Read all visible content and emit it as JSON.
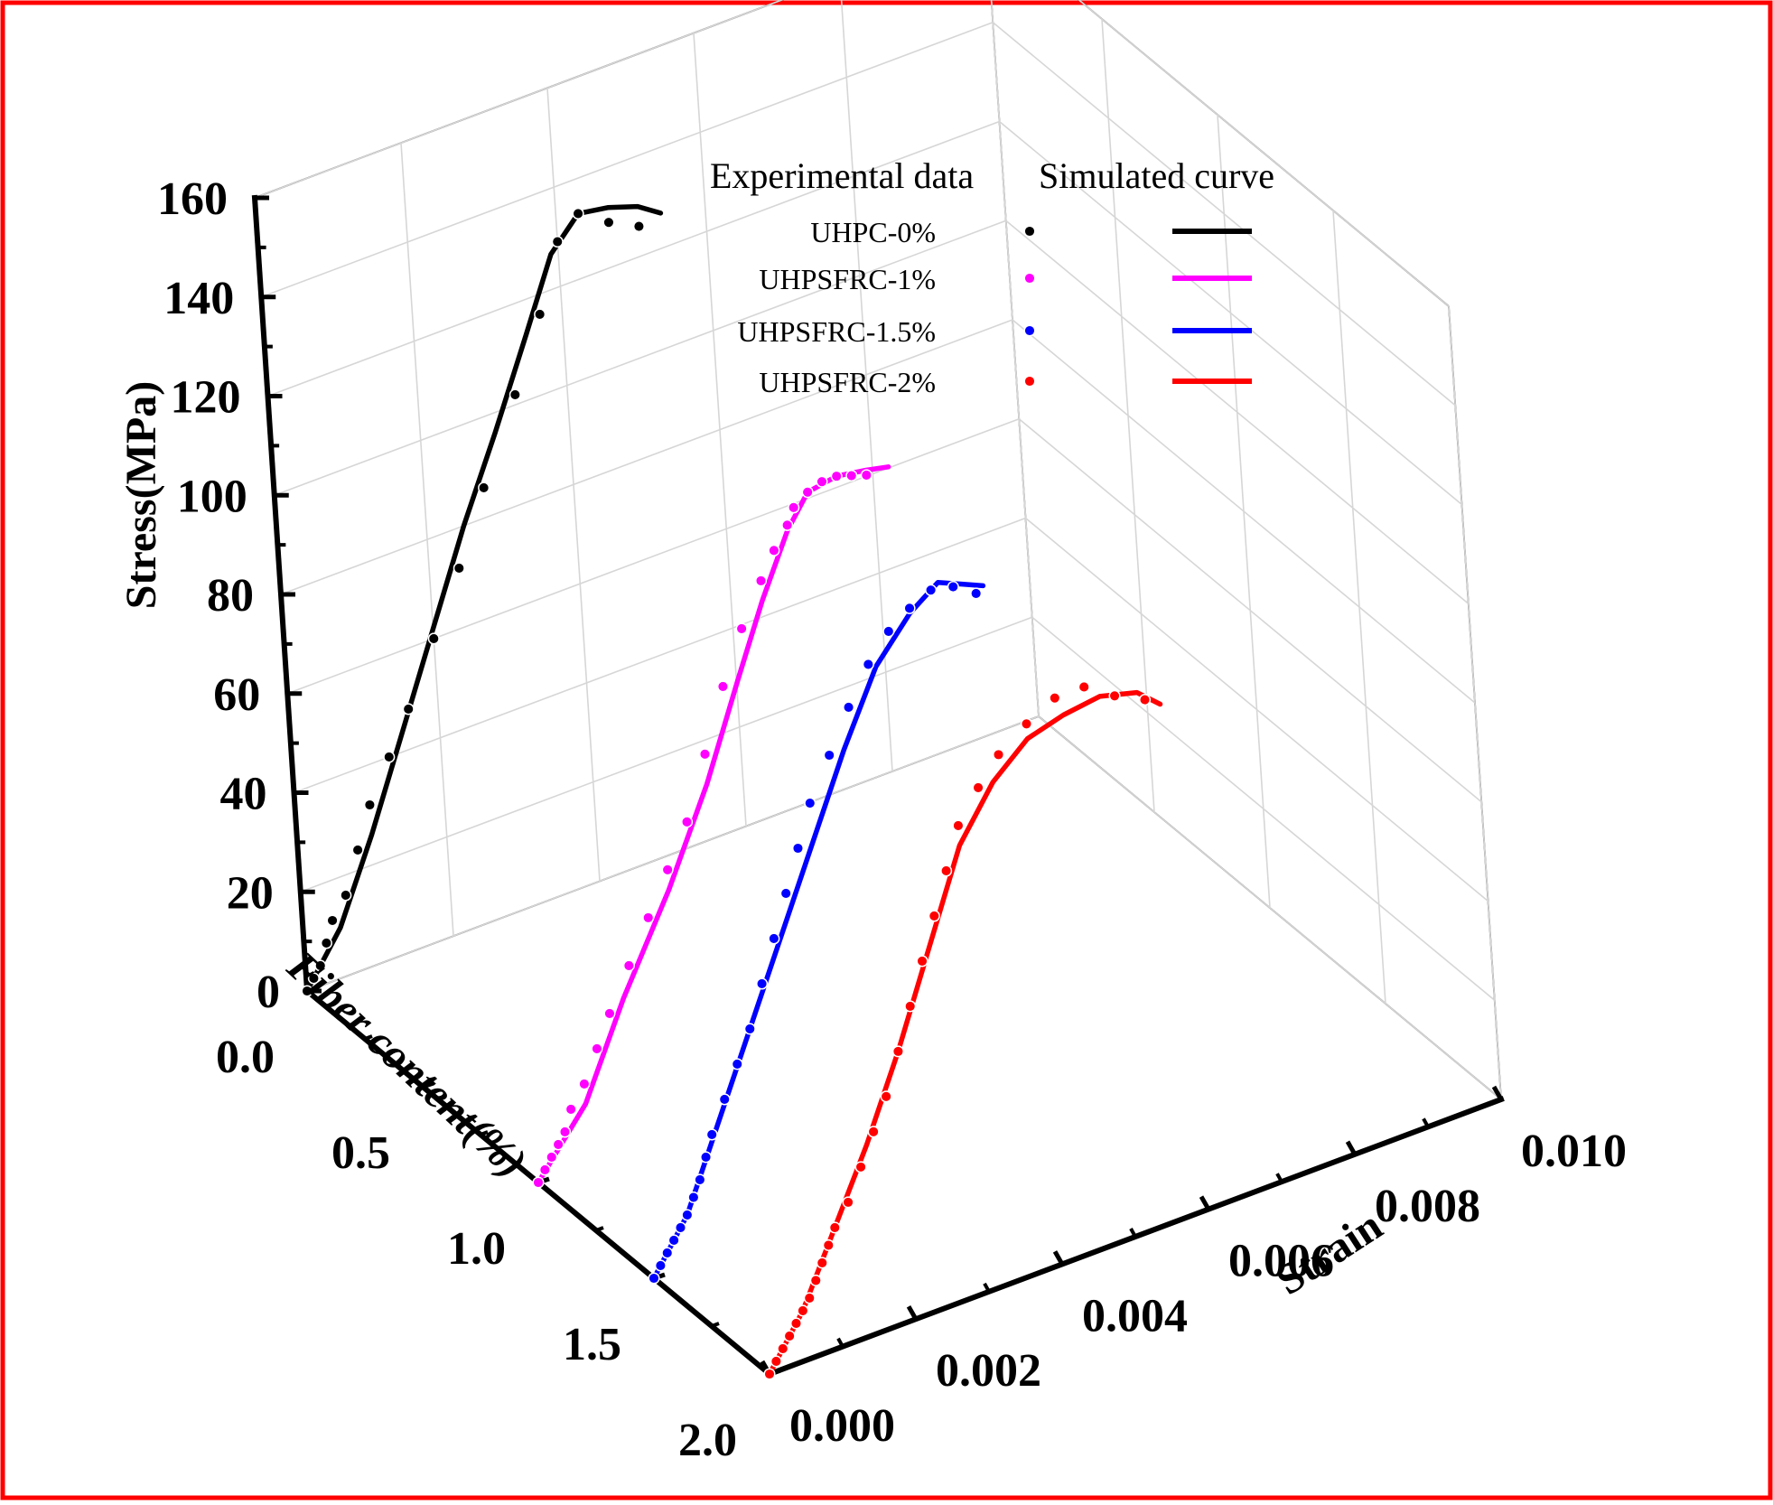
{
  "chart_data": {
    "type": "line3d",
    "title": "",
    "xlabel": "Fiber content(%)",
    "ylabel": "Strain",
    "zlabel": "Stress(MPa)",
    "x_ticks": [
      "0.0",
      "0.5",
      "1.0",
      "1.5",
      "2.0"
    ],
    "y_ticks": [
      "0.000",
      "0.002",
      "0.004",
      "0.006",
      "0.008",
      "0.010"
    ],
    "z_ticks": [
      "0",
      "20",
      "40",
      "60",
      "80",
      "100",
      "120",
      "140",
      "160"
    ],
    "xlim": [
      0,
      2
    ],
    "ylim": [
      0,
      0.01
    ],
    "zlim": [
      0,
      160
    ],
    "legend": {
      "headers": [
        "Experimental data",
        "Simulated curve"
      ],
      "placement": "top-right"
    },
    "series": [
      {
        "name": "UHPC-0%",
        "fiber": 0,
        "color": "#000000",
        "experimental": [
          [
            0.0,
            0
          ],
          [
            0.0001,
            2
          ],
          [
            0.0002,
            4
          ],
          [
            0.0003,
            8
          ],
          [
            0.0004,
            12
          ],
          [
            0.0006,
            16
          ],
          [
            0.0008,
            24
          ],
          [
            0.001,
            32
          ],
          [
            0.0013,
            40
          ],
          [
            0.0016,
            48
          ],
          [
            0.002,
            60
          ],
          [
            0.0024,
            72
          ],
          [
            0.0028,
            86
          ],
          [
            0.0033,
            102
          ],
          [
            0.0037,
            116
          ],
          [
            0.004,
            129
          ],
          [
            0.0043,
            133
          ],
          [
            0.0047,
            129
          ],
          [
            0.0051,
            126
          ]
        ],
        "simulated": [
          [
            0.0,
            0
          ],
          [
            0.0005,
            10
          ],
          [
            0.001,
            26
          ],
          [
            0.0015,
            44
          ],
          [
            0.002,
            62
          ],
          [
            0.0025,
            80
          ],
          [
            0.003,
            96
          ],
          [
            0.0035,
            113
          ],
          [
            0.0039,
            127
          ],
          [
            0.0043,
            133
          ],
          [
            0.0047,
            132
          ],
          [
            0.0051,
            130
          ],
          [
            0.0054,
            127
          ]
        ]
      },
      {
        "name": "UHPSFRC-1%",
        "fiber": 1,
        "color": "#ff00ff",
        "experimental": [
          [
            0.0,
            0
          ],
          [
            0.0001,
            2
          ],
          [
            0.0002,
            4
          ],
          [
            0.0003,
            6
          ],
          [
            0.0004,
            8
          ],
          [
            0.0005,
            12
          ],
          [
            0.0007,
            16
          ],
          [
            0.0009,
            22
          ],
          [
            0.0011,
            28
          ],
          [
            0.0014,
            36
          ],
          [
            0.0017,
            44
          ],
          [
            0.002,
            52
          ],
          [
            0.0023,
            60
          ],
          [
            0.0026,
            72
          ],
          [
            0.0029,
            84
          ],
          [
            0.0032,
            94
          ],
          [
            0.0035,
            102
          ],
          [
            0.0037,
            107
          ],
          [
            0.0039,
            111
          ],
          [
            0.004,
            114
          ],
          [
            0.0042,
            116
          ],
          [
            0.0044,
            117
          ],
          [
            0.0046,
            117
          ],
          [
            0.0048,
            116
          ],
          [
            0.005,
            115
          ]
        ],
        "simulated": [
          [
            0.0,
            0
          ],
          [
            0.0007,
            12
          ],
          [
            0.0013,
            30
          ],
          [
            0.002,
            48
          ],
          [
            0.0026,
            66
          ],
          [
            0.0031,
            84
          ],
          [
            0.0035,
            98
          ],
          [
            0.0039,
            110
          ],
          [
            0.0042,
            116
          ],
          [
            0.0046,
            117
          ],
          [
            0.005,
            116
          ],
          [
            0.0053,
            115
          ]
        ]
      },
      {
        "name": "UHPSFRC-1.5%",
        "fiber": 1.5,
        "color": "#0000ff",
        "experimental": [
          [
            0.0,
            0
          ],
          [
            0.0001,
            2
          ],
          [
            0.0002,
            4
          ],
          [
            0.0003,
            6
          ],
          [
            0.0004,
            8
          ],
          [
            0.0005,
            10
          ],
          [
            0.0006,
            13
          ],
          [
            0.0007,
            16
          ],
          [
            0.0008,
            20
          ],
          [
            0.0009,
            24
          ],
          [
            0.0011,
            30
          ],
          [
            0.0013,
            36
          ],
          [
            0.0015,
            42
          ],
          [
            0.0017,
            50
          ],
          [
            0.0019,
            58
          ],
          [
            0.0021,
            66
          ],
          [
            0.0023,
            74
          ],
          [
            0.0025,
            82
          ],
          [
            0.0028,
            90
          ],
          [
            0.0031,
            98
          ],
          [
            0.0034,
            105
          ],
          [
            0.0037,
            110
          ],
          [
            0.004,
            113
          ],
          [
            0.0043,
            115
          ],
          [
            0.0046,
            114
          ],
          [
            0.0049,
            111
          ]
        ],
        "simulated": [
          [
            0.0,
            0
          ],
          [
            0.0005,
            10
          ],
          [
            0.001,
            26
          ],
          [
            0.0015,
            42
          ],
          [
            0.002,
            58
          ],
          [
            0.0025,
            74
          ],
          [
            0.003,
            90
          ],
          [
            0.0035,
            104
          ],
          [
            0.004,
            112
          ],
          [
            0.0044,
            116
          ],
          [
            0.0047,
            114
          ],
          [
            0.005,
            112
          ]
        ]
      },
      {
        "name": "UHPSFRC-2%",
        "fiber": 2,
        "color": "#ff0000",
        "experimental": [
          [
            0.0,
            0
          ],
          [
            0.0001,
            2
          ],
          [
            0.0002,
            4
          ],
          [
            0.0003,
            6
          ],
          [
            0.0004,
            8
          ],
          [
            0.0005,
            10
          ],
          [
            0.0006,
            12
          ],
          [
            0.0007,
            15
          ],
          [
            0.0008,
            18
          ],
          [
            0.0009,
            21
          ],
          [
            0.001,
            24
          ],
          [
            0.0012,
            28
          ],
          [
            0.0014,
            34
          ],
          [
            0.0016,
            40
          ],
          [
            0.0018,
            46
          ],
          [
            0.002,
            54
          ],
          [
            0.0022,
            62
          ],
          [
            0.0024,
            70
          ],
          [
            0.0026,
            78
          ],
          [
            0.0028,
            86
          ],
          [
            0.003,
            94
          ],
          [
            0.0033,
            100
          ],
          [
            0.0036,
            105
          ],
          [
            0.004,
            109
          ],
          [
            0.0044,
            112
          ],
          [
            0.0048,
            112
          ],
          [
            0.0052,
            108
          ],
          [
            0.0056,
            105
          ]
        ],
        "simulated": [
          [
            0.0,
            0
          ],
          [
            0.0005,
            10
          ],
          [
            0.001,
            24
          ],
          [
            0.0015,
            38
          ],
          [
            0.002,
            54
          ],
          [
            0.0025,
            72
          ],
          [
            0.003,
            90
          ],
          [
            0.0035,
            100
          ],
          [
            0.004,
            106
          ],
          [
            0.0045,
            108
          ],
          [
            0.005,
            109
          ],
          [
            0.0055,
            107
          ],
          [
            0.0058,
            103
          ]
        ]
      }
    ]
  }
}
